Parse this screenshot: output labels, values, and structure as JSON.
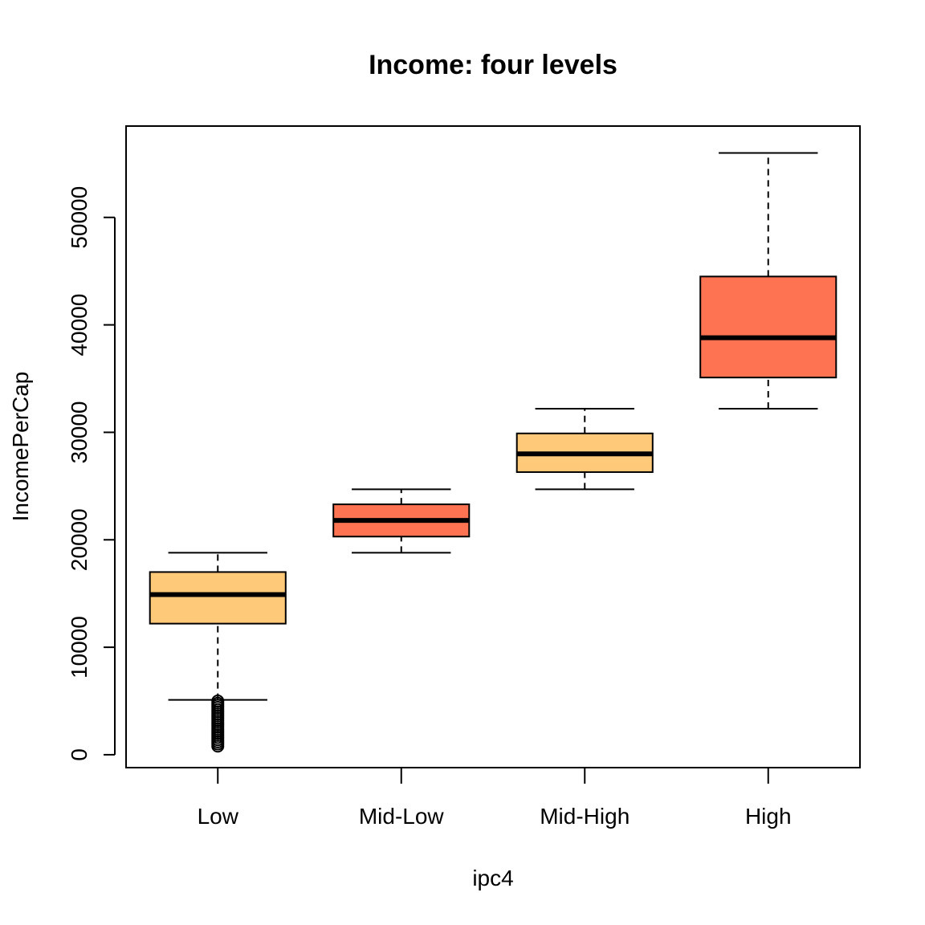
{
  "chart_data": {
    "type": "boxplot",
    "title": "Income: four levels",
    "xlabel": "ipc4",
    "ylabel": "IncomePerCap",
    "categories": [
      "Low",
      "Mid-Low",
      "Mid-High",
      "High"
    ],
    "ylim": [
      -1200,
      58500
    ],
    "yticks": [
      0,
      10000,
      20000,
      30000,
      40000,
      50000
    ],
    "ytick_labels": [
      "0",
      "10000",
      "20000",
      "30000",
      "40000",
      "50000"
    ],
    "grid": false,
    "boxes": [
      {
        "category": "Low",
        "whisker_low": 5100,
        "q1": 12200,
        "median": 14900,
        "q3": 17000,
        "whisker_high": 18800,
        "color": "#FEC979",
        "outliers": [
          800,
          1000,
          1200,
          1400,
          1600,
          1800,
          2000,
          2200,
          2400,
          2600,
          2800,
          3000,
          3200,
          3400,
          3600,
          3800,
          4000,
          4200,
          4400,
          4600,
          4800,
          5000
        ]
      },
      {
        "category": "Mid-Low",
        "whisker_low": 18800,
        "q1": 20300,
        "median": 21800,
        "q3": 23300,
        "whisker_high": 24700,
        "color": "#FE7352",
        "outliers": []
      },
      {
        "category": "Mid-High",
        "whisker_low": 24700,
        "q1": 26300,
        "median": 28000,
        "q3": 29900,
        "whisker_high": 32200,
        "color": "#FEC979",
        "outliers": []
      },
      {
        "category": "High",
        "whisker_low": 32200,
        "q1": 35100,
        "median": 38800,
        "q3": 44500,
        "whisker_high": 56000,
        "color": "#FE7352",
        "outliers": []
      }
    ]
  }
}
